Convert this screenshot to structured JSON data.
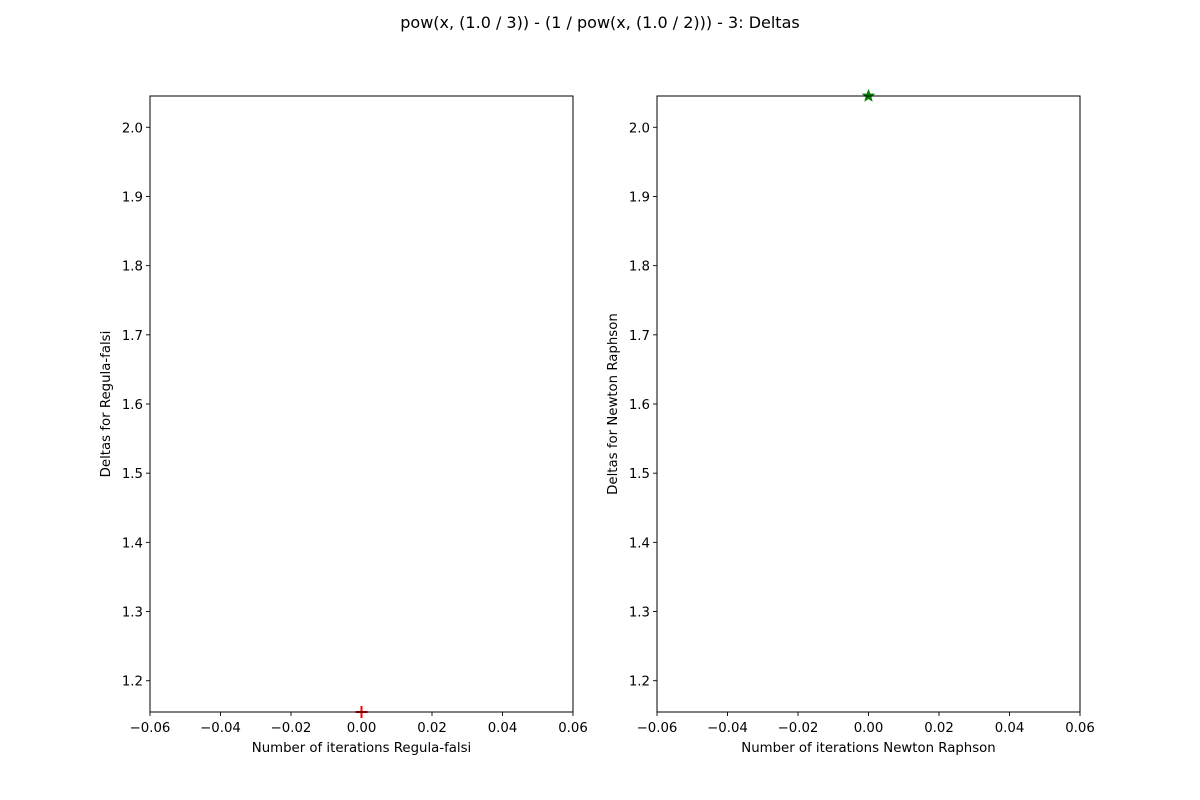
{
  "figure": {
    "title": "pow(x, (1.0 / 3)) - (1 / pow(x, (1.0 / 2))) - 3: Deltas"
  },
  "chart_data": [
    {
      "type": "scatter",
      "title": "",
      "xlabel": "Number of iterations Regula-falsi",
      "ylabel": "Deltas for Regula-falsi",
      "xlim": [
        -0.06,
        0.06
      ],
      "ylim": [
        1.1548,
        2.0452
      ],
      "x_ticks": [
        -0.06,
        -0.04,
        -0.02,
        0.0,
        0.02,
        0.04,
        0.06
      ],
      "x_tick_labels": [
        "−0.06",
        "−0.04",
        "−0.02",
        "0.00",
        "0.02",
        "0.04",
        "0.06"
      ],
      "y_ticks": [
        1.2,
        1.3,
        1.4,
        1.5,
        1.6,
        1.7,
        1.8,
        1.9,
        2.0
      ],
      "y_tick_labels": [
        "1.2",
        "1.3",
        "1.4",
        "1.5",
        "1.6",
        "1.7",
        "1.8",
        "1.9",
        "2.0"
      ],
      "grid": false,
      "series": [
        {
          "x": [
            0
          ],
          "y": [
            1.1548
          ],
          "color": "#ff0000",
          "marker": "plus"
        }
      ]
    },
    {
      "type": "scatter",
      "title": "",
      "xlabel": "Number of iterations Newton Raphson",
      "ylabel": "Deltas for Newton Raphson",
      "xlim": [
        -0.06,
        0.06
      ],
      "ylim": [
        1.1548,
        2.0452
      ],
      "x_ticks": [
        -0.06,
        -0.04,
        -0.02,
        0.0,
        0.02,
        0.04,
        0.06
      ],
      "x_tick_labels": [
        "−0.06",
        "−0.04",
        "−0.02",
        "0.00",
        "0.02",
        "0.04",
        "0.06"
      ],
      "y_ticks": [
        1.2,
        1.3,
        1.4,
        1.5,
        1.6,
        1.7,
        1.8,
        1.9,
        2.0
      ],
      "y_tick_labels": [
        "1.2",
        "1.3",
        "1.4",
        "1.5",
        "1.6",
        "1.7",
        "1.8",
        "1.9",
        "2.0"
      ],
      "grid": false,
      "series": [
        {
          "x": [
            0
          ],
          "y": [
            2.0452
          ],
          "color": "#008000",
          "marker": "star"
        }
      ]
    }
  ]
}
